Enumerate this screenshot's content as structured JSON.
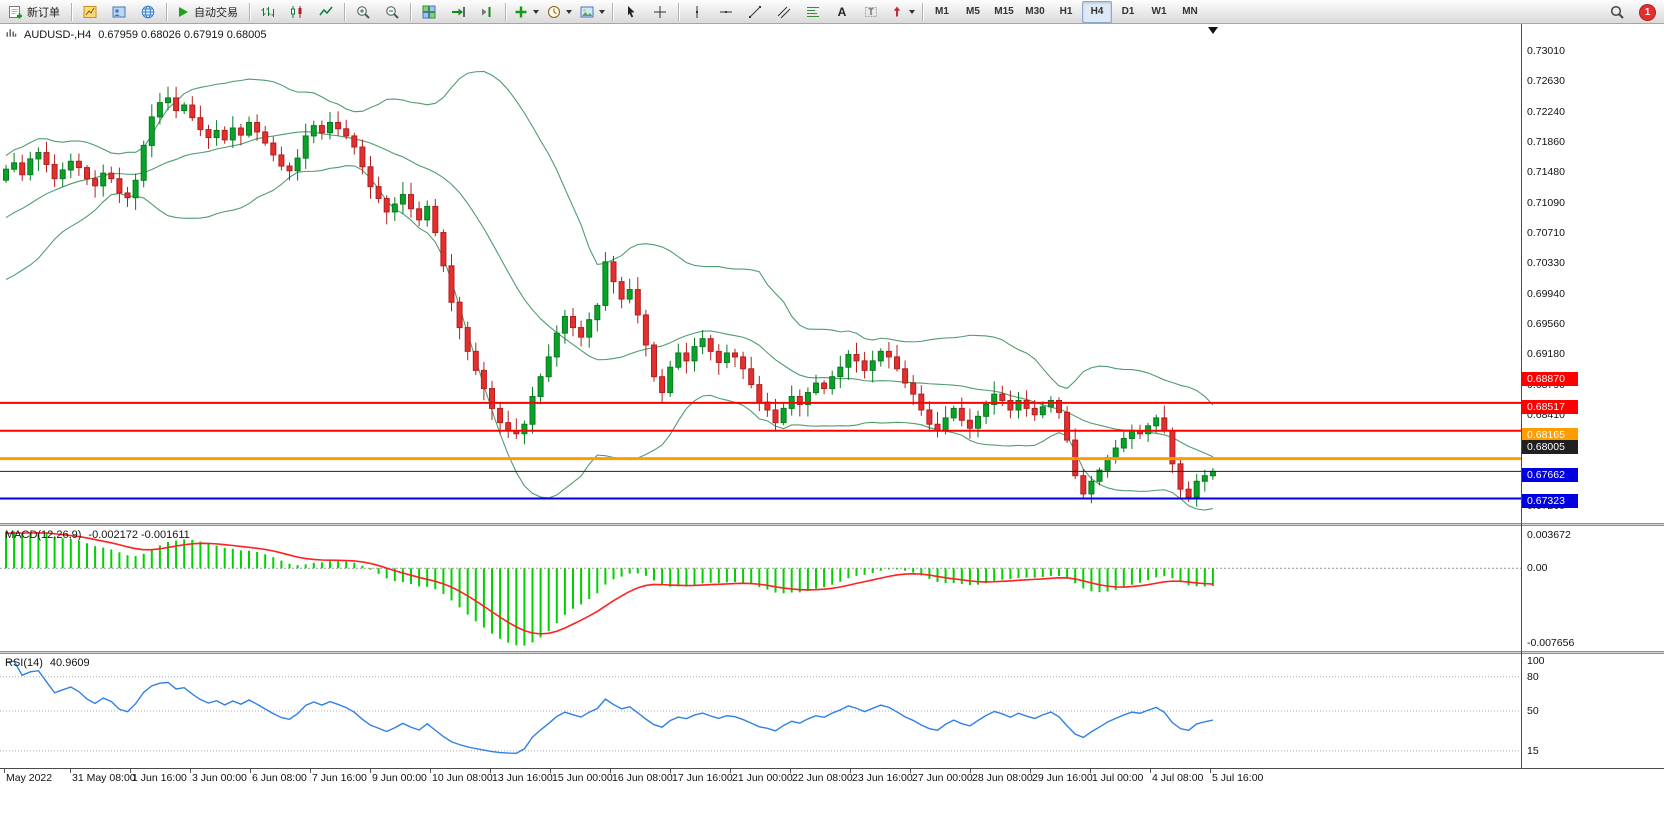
{
  "toolbar": {
    "groups": [
      {
        "name": "trade-group",
        "items": [
          {
            "name": "new-order-button",
            "icon": "new-order",
            "label": "新订单"
          }
        ]
      },
      {
        "name": "windows-group",
        "items": [
          {
            "name": "new-chart-button",
            "icon": "new-chart"
          },
          {
            "name": "profiles-button",
            "icon": "profiles"
          },
          {
            "name": "data-window-button",
            "icon": "globe"
          }
        ]
      },
      {
        "name": "autotrading-group",
        "items": [
          {
            "name": "autotrading-button",
            "icon": "play",
            "label": "自动交易"
          }
        ]
      },
      {
        "name": "chart-type-group",
        "items": [
          {
            "name": "bar-chart-button",
            "icon": "ohlc-bars"
          },
          {
            "name": "candlestick-chart-button",
            "icon": "candles"
          },
          {
            "name": "line-chart-button",
            "icon": "line-chart"
          }
        ]
      },
      {
        "name": "zoom-group",
        "items": [
          {
            "name": "zoom-in-button",
            "icon": "zoom-in"
          },
          {
            "name": "zoom-out-button",
            "icon": "zoom-out"
          }
        ]
      },
      {
        "name": "arrange-group",
        "items": [
          {
            "name": "tile-windows-button",
            "icon": "tile-windows"
          },
          {
            "name": "auto-scroll-button",
            "icon": "auto-scroll"
          },
          {
            "name": "chart-shift-button",
            "icon": "chart-shift"
          }
        ]
      },
      {
        "name": "insert-group",
        "items": [
          {
            "name": "indicators-button",
            "icon": "indicator-plus",
            "dropdown": true
          },
          {
            "name": "periods-button",
            "icon": "clock",
            "dropdown": true
          },
          {
            "name": "templates-button",
            "icon": "template",
            "dropdown": true
          }
        ]
      },
      {
        "name": "cursor-group",
        "items": [
          {
            "name": "cursor-button",
            "icon": "cursor"
          },
          {
            "name": "crosshair-button",
            "icon": "crosshair"
          }
        ]
      },
      {
        "name": "draw-group",
        "items": [
          {
            "name": "vertical-line-button",
            "icon": "vline"
          },
          {
            "name": "horizontal-line-button",
            "icon": "hline"
          },
          {
            "name": "trendline-button",
            "icon": "trendline"
          },
          {
            "name": "channel-button",
            "icon": "channel"
          },
          {
            "name": "fibonacci-button",
            "icon": "fibonacci"
          },
          {
            "name": "text-button",
            "icon": "text-a"
          },
          {
            "name": "text-label-button",
            "icon": "label-t"
          },
          {
            "name": "arrow-shapes-button",
            "icon": "shapes",
            "dropdown": true
          }
        ]
      },
      {
        "name": "timeframe-group",
        "items": [
          {
            "name": "tf-m1-button",
            "label": "M1"
          },
          {
            "name": "tf-m5-button",
            "label": "M5"
          },
          {
            "name": "tf-m15-button",
            "label": "M15"
          },
          {
            "name": "tf-m30-button",
            "label": "M30"
          },
          {
            "name": "tf-h1-button",
            "label": "H1"
          },
          {
            "name": "tf-h4-button",
            "label": "H4",
            "active": true
          },
          {
            "name": "tf-d1-button",
            "label": "D1"
          },
          {
            "name": "tf-w1-button",
            "label": "W1"
          },
          {
            "name": "tf-mn-button",
            "label": "MN"
          }
        ]
      }
    ],
    "right": [
      {
        "name": "symbol-search-button",
        "icon": "search"
      },
      {
        "name": "notifications-badge",
        "label": "1",
        "badge": true
      }
    ]
  },
  "chart_data": {
    "type": "candlestick",
    "symbol": "AUDUSD-",
    "period": "H4",
    "title": "AUDUSD-,H4",
    "ohlc_line": "0.67959 0.68026 0.67919 0.68005",
    "candle_colors": {
      "up": "#0aa32a",
      "up_stroke": "#067a1e",
      "down": "#e22f2f",
      "down_stroke": "#b31f1f"
    },
    "price_axis": {
      "view_max": 0.7335,
      "view_min": 0.6705,
      "labels": [
        "0.73010",
        "0.72630",
        "0.72240",
        "0.71860",
        "0.71480",
        "0.71090",
        "0.70710",
        "0.70330",
        "0.69940",
        "0.69560",
        "0.69180",
        "0.68790",
        "0.68410",
        "0.68030",
        "0.67640",
        "0.67260"
      ]
    },
    "time_axis": {
      "labels": [
        "May 2022",
        "31 May 08:00",
        "1 Jun 16:00",
        "3 Jun 00:00",
        "6 Jun 08:00",
        "7 Jun 16:00",
        "9 Jun 00:00",
        "10 Jun 08:00",
        "13 Jun 16:00",
        "15 Jun 00:00",
        "16 Jun 08:00",
        "17 Jun 16:00",
        "21 Jun 00:00",
        "22 Jun 08:00",
        "23 Jun 16:00",
        "27 Jun 00:00",
        "28 Jun 08:00",
        "29 Jun 16:00",
        "1 Jul 00:00",
        "4 Jul 08:00",
        "5 Jul 16:00"
      ]
    },
    "candles": {
      "closes": [
        0.7182,
        0.719,
        0.7175,
        0.7195,
        0.7203,
        0.7188,
        0.717,
        0.7181,
        0.7192,
        0.7184,
        0.717,
        0.7161,
        0.7177,
        0.717,
        0.7152,
        0.7146,
        0.7168,
        0.7212,
        0.7248,
        0.7266,
        0.7272,
        0.7256,
        0.7263,
        0.7247,
        0.7232,
        0.7222,
        0.7231,
        0.7219,
        0.7234,
        0.7225,
        0.7241,
        0.7229,
        0.7215,
        0.72,
        0.7186,
        0.718,
        0.7196,
        0.7224,
        0.7237,
        0.7228,
        0.7241,
        0.7233,
        0.7224,
        0.721,
        0.7185,
        0.716,
        0.7145,
        0.7128,
        0.7138,
        0.715,
        0.7132,
        0.7118,
        0.7135,
        0.7102,
        0.706,
        0.7014,
        0.6982,
        0.6952,
        0.6928,
        0.6905,
        0.688,
        0.6862,
        0.6852,
        0.6848,
        0.686,
        0.6895,
        0.692,
        0.6945,
        0.6975,
        0.6996,
        0.6982,
        0.697,
        0.6992,
        0.701,
        0.7065,
        0.704,
        0.7018,
        0.703,
        0.6998,
        0.696,
        0.692,
        0.69,
        0.6932,
        0.695,
        0.694,
        0.6958,
        0.6968,
        0.6952,
        0.6938,
        0.695,
        0.6945,
        0.693,
        0.691,
        0.6888,
        0.6878,
        0.6862,
        0.688,
        0.6895,
        0.6885,
        0.69,
        0.6912,
        0.6905,
        0.692,
        0.6932,
        0.6948,
        0.694,
        0.6928,
        0.694,
        0.6952,
        0.6945,
        0.693,
        0.6912,
        0.6898,
        0.6878,
        0.686,
        0.6852,
        0.6868,
        0.688,
        0.6865,
        0.6855,
        0.687,
        0.6885,
        0.6898,
        0.689,
        0.6878,
        0.689,
        0.688,
        0.6872,
        0.6882,
        0.689,
        0.6875,
        0.684,
        0.6795,
        0.6772,
        0.6788,
        0.6802,
        0.6818,
        0.683,
        0.6842,
        0.6852,
        0.6848,
        0.6858,
        0.6868,
        0.6852,
        0.681,
        0.6778,
        0.6768,
        0.6788,
        0.6795,
        0.68005
      ]
    },
    "overlays": {
      "bollinger": {
        "period": 20,
        "deviation": 2,
        "color": "#4f9d6f"
      }
    },
    "levels": [
      {
        "price": "0.68870",
        "color": "#ff0000",
        "line_width": 2
      },
      {
        "price": "0.68517",
        "color": "#ff0000",
        "line_width": 2
      },
      {
        "price": "0.68165",
        "color": "#ff9c00",
        "line_width": 3
      },
      {
        "price": "0.68005",
        "color": "#202020",
        "line_width": 1
      },
      {
        "price": "0.67662",
        "color": "#0000e0",
        "line_width": 2
      },
      {
        "price": "0.67323",
        "color": "#0000e0",
        "line_width": 2
      }
    ],
    "sub_charts": [
      {
        "type": "macd",
        "label": "MACD(12,26,9)",
        "values_label": "-0.002172 -0.001611",
        "params": [
          12,
          26,
          9
        ],
        "axis_labels": [
          "0.003672",
          "0.00",
          "-0.007656"
        ],
        "histogram_color": "#00d200",
        "signal_color": "#ff2020"
      },
      {
        "type": "rsi",
        "label": "RSI(14)",
        "values_label": "40.9609",
        "period": 14,
        "axis_labels": [
          "100",
          "80",
          "50",
          "15"
        ],
        "levels": [
          80,
          50,
          15
        ],
        "line_color": "#3080e8"
      }
    ]
  }
}
